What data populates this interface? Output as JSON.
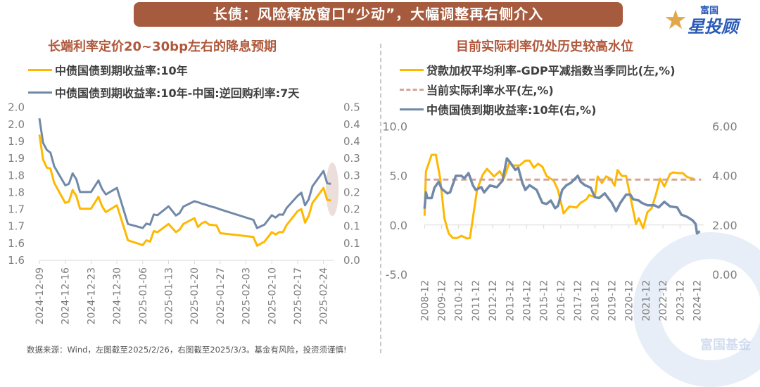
{
  "header": {
    "title": "长债：风险释放窗口“少动”，大幅调整再右侧介入"
  },
  "logo": {
    "text_small": "富国",
    "text_big": "星投顾"
  },
  "watermark": {
    "text": "富国基金"
  },
  "footer": {
    "source": "数据来源：Wind，左图截至2025/2/26，右图截至2025/3/3。基金有风险，投资须谨慎!"
  },
  "colors": {
    "yellow": "#ffb800",
    "blue": "#7189a8",
    "dashed": "#d4a596",
    "title_bg": "#a65b3e",
    "subtitle": "#b0583c"
  },
  "chart_data": [
    {
      "type": "line",
      "title": "长端利率定价20~30bp左右的降息预期",
      "legend_placement": "top-left",
      "grid": false,
      "x_tick_labels": [
        "2024-12-09",
        "2024-12-16",
        "2024-12-23",
        "2024-12-30",
        "2025-01-06",
        "2025-01-13",
        "2025-01-20",
        "2025-01-27",
        "2025-02-03",
        "2025-02-10",
        "2025-02-17",
        "2025-02-24"
      ],
      "y_left": {
        "range": [
          1.6,
          2.05
        ],
        "tick_labels": [
          "2.0",
          "2.0",
          "1.9",
          "1.9",
          "1.8",
          "1.8",
          "1.7",
          "1.7",
          "1.6",
          "1.6"
        ]
      },
      "y_right": {
        "range": [
          0.0,
          0.45
        ],
        "tick_labels": [
          "0.5",
          "0.4",
          "0.4",
          "0.3",
          "0.3",
          "0.2",
          "0.2",
          "0.1",
          "0.1",
          "0.0"
        ]
      },
      "x": [
        "2024-12-09",
        "2024-12-10",
        "2024-12-11",
        "2024-12-12",
        "2024-12-13",
        "2024-12-16",
        "2024-12-17",
        "2024-12-18",
        "2024-12-19",
        "2024-12-20",
        "2024-12-23",
        "2024-12-25",
        "2024-12-26",
        "2024-12-27",
        "2024-12-30",
        "2025-01-02",
        "2025-01-06",
        "2025-01-07",
        "2025-01-08",
        "2025-01-09",
        "2025-01-10",
        "2025-01-13",
        "2025-01-15",
        "2025-01-16",
        "2025-01-17",
        "2025-01-20",
        "2025-01-21",
        "2025-01-22",
        "2025-01-23",
        "2025-01-24",
        "2025-01-26",
        "2025-01-27",
        "2025-02-05",
        "2025-02-06",
        "2025-02-08",
        "2025-02-10",
        "2025-02-11",
        "2025-02-12",
        "2025-02-13",
        "2025-02-14",
        "2025-02-17",
        "2025-02-18",
        "2025-02-19",
        "2025-02-20",
        "2025-02-21",
        "2025-02-24",
        "2025-02-25",
        "2025-02-26"
      ],
      "series": [
        {
          "name": "中债国债到期收益率:10年",
          "axis": "left",
          "color": "#ffb800",
          "values": [
            1.97,
            1.897,
            1.873,
            1.87,
            1.828,
            1.769,
            1.773,
            1.807,
            1.79,
            1.752,
            1.752,
            1.787,
            1.759,
            1.742,
            1.762,
            1.659,
            1.645,
            1.659,
            1.655,
            1.686,
            1.683,
            1.707,
            1.683,
            1.69,
            1.707,
            1.724,
            1.698,
            1.709,
            1.714,
            1.705,
            1.703,
            1.68,
            1.669,
            1.643,
            1.655,
            1.683,
            1.676,
            1.683,
            1.683,
            1.704,
            1.745,
            1.751,
            1.711,
            1.731,
            1.769,
            1.813,
            1.778,
            1.776
          ]
        },
        {
          "name": "中债国债到期收益率:10年-中国:逆回购利率:7天",
          "axis": "right",
          "color": "#7189a8",
          "values": [
            0.418,
            0.346,
            0.325,
            0.317,
            0.277,
            0.221,
            0.225,
            0.256,
            0.239,
            0.201,
            0.201,
            0.235,
            0.21,
            0.194,
            0.213,
            0.107,
            0.095,
            0.108,
            0.105,
            0.135,
            0.133,
            0.159,
            0.132,
            0.139,
            0.158,
            0.174,
            0.171,
            0.167,
            0.164,
            0.16,
            0.154,
            0.15,
            0.119,
            0.095,
            0.105,
            0.133,
            0.126,
            0.135,
            0.134,
            0.154,
            0.19,
            0.199,
            0.162,
            0.18,
            0.218,
            0.263,
            0.227,
            0.225
          ]
        }
      ],
      "annotation": "highlight-ellipse-latest"
    },
    {
      "type": "line",
      "title": "目前实际利率仍处历史较高水位",
      "legend_placement": "top-left",
      "grid": false,
      "x_tick_labels": [
        "2008-12",
        "2009-12",
        "2010-12",
        "2011-12",
        "2012-12",
        "2013-12",
        "2014-12",
        "2015-12",
        "2016-12",
        "2017-12",
        "2018-12",
        "2019-12",
        "2020-12",
        "2021-12",
        "2022-12",
        "2023-12",
        "2024-12"
      ],
      "y_left": {
        "range": [
          -5.0,
          10.0
        ],
        "tick_labels": [
          "10.0",
          "5.0",
          "0.0",
          "-5.0"
        ]
      },
      "y_right": {
        "range": [
          0.0,
          6.0
        ],
        "tick_labels": [
          "6.00",
          "4.00",
          "2.00",
          "0.00"
        ]
      },
      "series": [
        {
          "name": "贷款加权平均利率-GDP平减指数当季同比(左,%)",
          "axis": "left",
          "color": "#ffb800",
          "points": [
            [
              "2008-12",
              0.93
            ],
            [
              "2009-01",
              5.44
            ],
            [
              "2009-05",
              7.1
            ],
            [
              "2009-08",
              7.1
            ],
            [
              "2009-11",
              4.73
            ],
            [
              "2010-02",
              0.69
            ],
            [
              "2010-05",
              -0.85
            ],
            [
              "2010-08",
              -1.32
            ],
            [
              "2010-11",
              -1.32
            ],
            [
              "2011-02",
              -1.09
            ],
            [
              "2011-06",
              -1.37
            ],
            [
              "2011-08",
              -1.32
            ],
            [
              "2012-01",
              3.54
            ],
            [
              "2012-05",
              5.08
            ],
            [
              "2012-08",
              5.68
            ],
            [
              "2013-01",
              4.92
            ],
            [
              "2013-05",
              5.44
            ],
            [
              "2013-08",
              4.73
            ],
            [
              "2013-12",
              6.39
            ],
            [
              "2014-02",
              6.03
            ],
            [
              "2014-07",
              6.03
            ],
            [
              "2014-11",
              6.51
            ],
            [
              "2015-02",
              6.51
            ],
            [
              "2015-05",
              5.8
            ],
            [
              "2015-08",
              6.2
            ],
            [
              "2015-11",
              5.91
            ],
            [
              "2016-02",
              4.96
            ],
            [
              "2016-07",
              4.49
            ],
            [
              "2016-10",
              3.54
            ],
            [
              "2017-02",
              1.17
            ],
            [
              "2017-06",
              1.88
            ],
            [
              "2017-11",
              1.76
            ],
            [
              "2018-02",
              2.24
            ],
            [
              "2018-06",
              2.59
            ],
            [
              "2018-08",
              3.02
            ],
            [
              "2018-12",
              2.83
            ],
            [
              "2019-02",
              4.92
            ],
            [
              "2019-05",
              4.25
            ],
            [
              "2019-08",
              4.92
            ],
            [
              "2019-11",
              4.68
            ],
            [
              "2020-02",
              3.97
            ],
            [
              "2020-04",
              5.56
            ],
            [
              "2020-07",
              4.96
            ],
            [
              "2020-10",
              4.96
            ],
            [
              "2021-05",
              0.1
            ],
            [
              "2021-07",
              0.69
            ],
            [
              "2021-10",
              -0.33
            ],
            [
              "2022-01",
              1.29
            ],
            [
              "2022-04",
              1.69
            ],
            [
              "2022-07",
              3.06
            ],
            [
              "2022-10",
              4.68
            ],
            [
              "2023-01",
              3.9
            ],
            [
              "2023-05",
              5.16
            ],
            [
              "2023-07",
              5.32
            ],
            [
              "2023-11",
              5.25
            ],
            [
              "2024-02",
              5.25
            ],
            [
              "2024-05",
              4.85
            ],
            [
              "2024-10",
              4.66
            ]
          ]
        },
        {
          "name": "当前实际利率水平(左,%)",
          "axis": "left",
          "color": "#d4a596",
          "style": "dashed",
          "points": [
            [
              "2008-12",
              4.6
            ],
            [
              "2025-03",
              4.6
            ]
          ]
        },
        {
          "name": "中债国债到期收益率:10年(右,%)",
          "axis": "right",
          "color": "#7189a8",
          "points": [
            [
              "2008-12",
              2.66
            ],
            [
              "2009-01",
              3.32
            ],
            [
              "2009-02",
              3.09
            ],
            [
              "2009-05",
              3.09
            ],
            [
              "2009-07",
              3.51
            ],
            [
              "2009-10",
              3.75
            ],
            [
              "2009-12",
              3.47
            ],
            [
              "2010-04",
              3.28
            ],
            [
              "2010-06",
              3.32
            ],
            [
              "2010-10",
              3.99
            ],
            [
              "2011-02",
              3.99
            ],
            [
              "2011-04",
              3.89
            ],
            [
              "2011-07",
              4.1
            ],
            [
              "2011-10",
              3.61
            ],
            [
              "2011-12",
              3.42
            ],
            [
              "2012-04",
              3.53
            ],
            [
              "2012-06",
              3.32
            ],
            [
              "2012-10",
              3.6
            ],
            [
              "2013-03",
              3.53
            ],
            [
              "2013-07",
              3.8
            ],
            [
              "2013-10",
              4.7
            ],
            [
              "2013-12",
              4.56
            ],
            [
              "2014-04",
              4.23
            ],
            [
              "2014-06",
              4.32
            ],
            [
              "2014-09",
              3.7
            ],
            [
              "2014-11",
              3.42
            ],
            [
              "2015-02",
              3.61
            ],
            [
              "2015-07",
              3.42
            ],
            [
              "2015-11",
              2.9
            ],
            [
              "2016-02",
              2.85
            ],
            [
              "2016-05",
              2.99
            ],
            [
              "2016-08",
              2.68
            ],
            [
              "2016-10",
              2.77
            ],
            [
              "2017-01",
              3.42
            ],
            [
              "2017-04",
              3.61
            ],
            [
              "2017-07",
              3.7
            ],
            [
              "2017-12",
              3.99
            ],
            [
              "2018-02",
              3.75
            ],
            [
              "2018-05",
              3.61
            ],
            [
              "2018-09",
              3.51
            ],
            [
              "2018-12",
              3.13
            ],
            [
              "2019-03",
              3.09
            ],
            [
              "2019-07",
              3.28
            ],
            [
              "2019-10",
              3.04
            ],
            [
              "2019-12",
              2.9
            ],
            [
              "2020-03",
              2.56
            ],
            [
              "2020-06",
              2.9
            ],
            [
              "2020-10",
              3.23
            ],
            [
              "2021-01",
              3.23
            ],
            [
              "2021-03",
              3.04
            ],
            [
              "2021-07",
              2.99
            ],
            [
              "2021-09",
              2.9
            ],
            [
              "2022-01",
              2.8
            ],
            [
              "2022-06",
              2.8
            ],
            [
              "2022-09",
              2.71
            ],
            [
              "2023-01",
              2.94
            ],
            [
              "2023-05",
              2.75
            ],
            [
              "2023-10",
              2.71
            ],
            [
              "2024-01",
              2.42
            ],
            [
              "2024-05",
              2.33
            ],
            [
              "2024-09",
              2.18
            ],
            [
              "2024-11",
              2.04
            ],
            [
              "2024-12",
              1.66
            ],
            [
              "2025-02",
              1.75
            ]
          ]
        }
      ]
    }
  ]
}
